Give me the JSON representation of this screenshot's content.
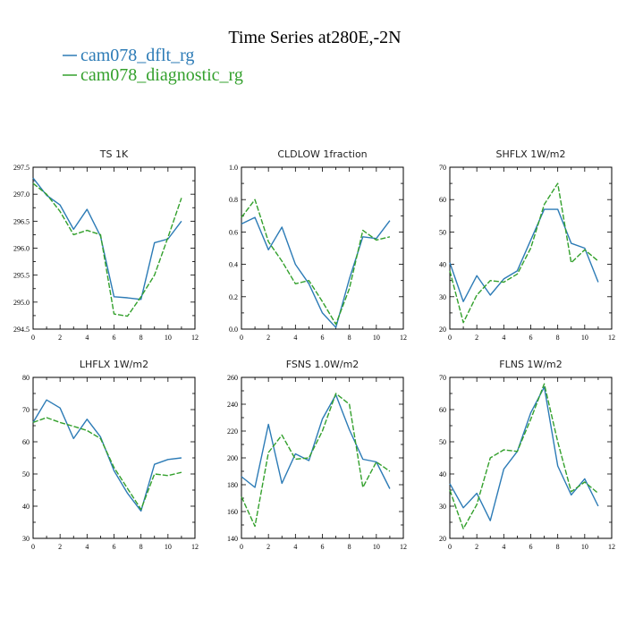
{
  "figure": {
    "title": "Time Series at280E,-2N",
    "legend": [
      {
        "label": "cam078_dflt_rg",
        "color": "#2c7bb6",
        "dash": "solid"
      },
      {
        "label": "cam078_diagnostic_rg",
        "color": "#33a02c",
        "dash": "dashed"
      }
    ]
  },
  "chart_data": [
    {
      "type": "line",
      "title": "TS   1K",
      "xlim": [
        0,
        12
      ],
      "xticks": [
        0,
        2,
        4,
        6,
        8,
        10,
        12
      ],
      "ylim": [
        294.5,
        297.5
      ],
      "yticks": [
        294.5,
        295.0,
        295.5,
        296.0,
        296.5,
        297.0,
        297.5
      ],
      "x": [
        0,
        1,
        2,
        3,
        4,
        5,
        6,
        7,
        8,
        9,
        10,
        11
      ],
      "series": [
        {
          "name": "cam078_dflt_rg",
          "values": [
            297.3,
            296.98,
            296.8,
            296.35,
            296.72,
            296.22,
            295.1,
            295.08,
            295.05,
            296.1,
            296.17,
            296.5
          ]
        },
        {
          "name": "cam078_diagnostic_rg",
          "values": [
            297.2,
            297.0,
            296.68,
            296.25,
            296.33,
            296.25,
            294.78,
            294.74,
            295.1,
            295.5,
            296.2,
            296.93
          ]
        }
      ]
    },
    {
      "type": "line",
      "title": "CLDLOW   1fraction",
      "xlim": [
        0,
        12
      ],
      "xticks": [
        0,
        2,
        4,
        6,
        8,
        10,
        12
      ],
      "ylim": [
        0.0,
        1.0
      ],
      "yticks": [
        0.0,
        0.2,
        0.4,
        0.6,
        0.8,
        1.0
      ],
      "x": [
        0,
        1,
        2,
        3,
        4,
        5,
        6,
        7,
        8,
        9,
        10,
        11
      ],
      "series": [
        {
          "name": "cam078_dflt_rg",
          "values": [
            0.65,
            0.69,
            0.49,
            0.63,
            0.4,
            0.28,
            0.1,
            0.01,
            0.31,
            0.57,
            0.56,
            0.67
          ]
        },
        {
          "name": "cam078_diagnostic_rg",
          "values": [
            0.69,
            0.8,
            0.54,
            0.42,
            0.28,
            0.3,
            0.17,
            0.03,
            0.25,
            0.61,
            0.55,
            0.57
          ]
        }
      ]
    },
    {
      "type": "line",
      "title": "SHFLX   1W/m2",
      "xlim": [
        0,
        12
      ],
      "xticks": [
        0,
        2,
        4,
        6,
        8,
        10,
        12
      ],
      "ylim": [
        20,
        70
      ],
      "yticks": [
        20,
        30,
        40,
        50,
        60,
        70
      ],
      "x": [
        0,
        1,
        2,
        3,
        4,
        5,
        6,
        7,
        8,
        9,
        10,
        11
      ],
      "series": [
        {
          "name": "cam078_dflt_rg",
          "values": [
            40.5,
            28.5,
            36.5,
            30.5,
            35.5,
            38.0,
            47.5,
            57.0,
            57.0,
            46.5,
            45.0,
            34.5
          ]
        },
        {
          "name": "cam078_diagnostic_rg",
          "values": [
            38.0,
            22.0,
            30.5,
            35.0,
            34.5,
            37.0,
            45.0,
            58.5,
            65.0,
            40.5,
            44.5,
            41.0
          ]
        }
      ]
    },
    {
      "type": "line",
      "title": "LHFLX   1W/m2",
      "xlim": [
        0,
        12
      ],
      "xticks": [
        0,
        2,
        4,
        6,
        8,
        10,
        12
      ],
      "ylim": [
        30,
        80
      ],
      "yticks": [
        30,
        40,
        50,
        60,
        70,
        80
      ],
      "x": [
        0,
        1,
        2,
        3,
        4,
        5,
        6,
        7,
        8,
        9,
        10,
        11
      ],
      "series": [
        {
          "name": "cam078_dflt_rg",
          "values": [
            66.0,
            73.0,
            70.5,
            61.0,
            67.0,
            61.5,
            51.0,
            44.0,
            38.5,
            53.0,
            54.5,
            55.0
          ]
        },
        {
          "name": "cam078_diagnostic_rg",
          "values": [
            66.0,
            67.5,
            66.0,
            64.8,
            63.5,
            61.0,
            52.0,
            45.5,
            39.0,
            50.0,
            49.5,
            50.5
          ]
        }
      ]
    },
    {
      "type": "line",
      "title": "FSNS   1.0W/m2",
      "xlim": [
        0,
        12
      ],
      "xticks": [
        0,
        2,
        4,
        6,
        8,
        10,
        12
      ],
      "ylim": [
        140,
        260
      ],
      "yticks": [
        140,
        160,
        180,
        200,
        220,
        240,
        260
      ],
      "x": [
        0,
        1,
        2,
        3,
        4,
        5,
        6,
        7,
        8,
        9,
        10,
        11
      ],
      "series": [
        {
          "name": "cam078_dflt_rg",
          "values": [
            186.0,
            178.0,
            225.0,
            181.0,
            203.0,
            198.0,
            229.0,
            247.0,
            221.0,
            199.0,
            197.0,
            177.0
          ]
        },
        {
          "name": "cam078_diagnostic_rg",
          "values": [
            171.0,
            149.0,
            204.0,
            217.0,
            199.0,
            200.0,
            220.0,
            248.0,
            240.0,
            178.0,
            197.0,
            190.0
          ]
        }
      ]
    },
    {
      "type": "line",
      "title": "FLNS   1W/m2",
      "xlim": [
        0,
        12
      ],
      "xticks": [
        0,
        2,
        4,
        6,
        8,
        10,
        12
      ],
      "ylim": [
        20,
        70
      ],
      "yticks": [
        20,
        30,
        40,
        50,
        60,
        70
      ],
      "x": [
        0,
        1,
        2,
        3,
        4,
        5,
        6,
        7,
        8,
        9,
        10,
        11
      ],
      "series": [
        {
          "name": "cam078_dflt_rg",
          "values": [
            37.0,
            29.5,
            34.0,
            25.5,
            41.5,
            47.0,
            59.0,
            67.0,
            42.5,
            33.5,
            38.5,
            30.0
          ]
        },
        {
          "name": "cam078_diagnostic_rg",
          "values": [
            35.0,
            23.0,
            30.5,
            45.0,
            47.5,
            47.0,
            57.0,
            68.0,
            50.0,
            34.5,
            37.5,
            34.0
          ]
        }
      ]
    }
  ]
}
